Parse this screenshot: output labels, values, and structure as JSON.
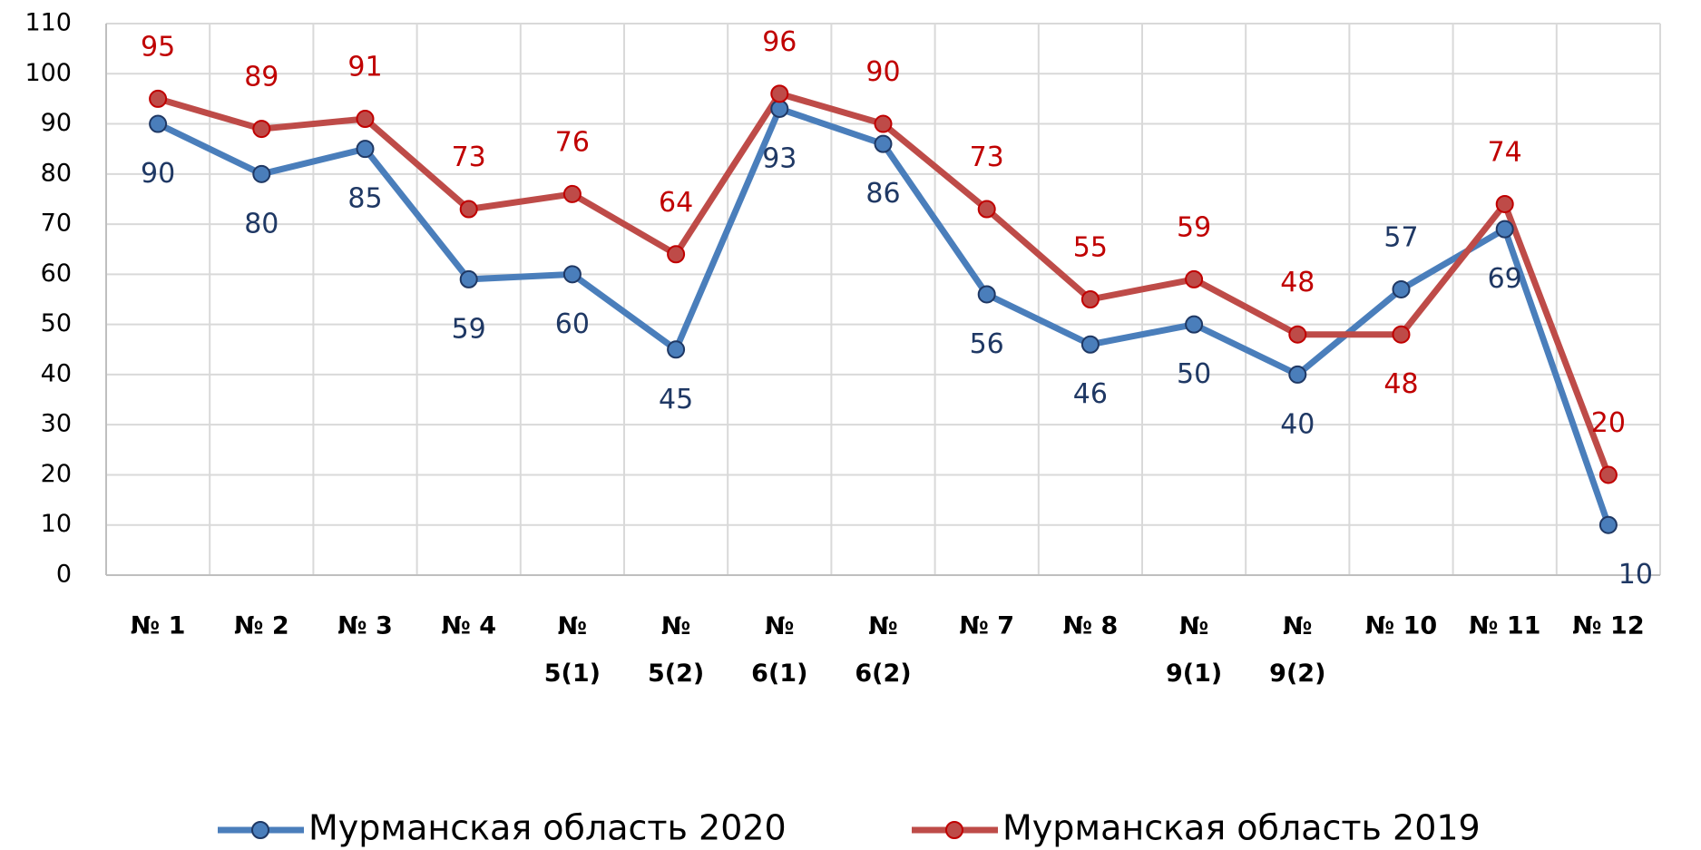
{
  "chart_data": {
    "type": "line",
    "categories": [
      "№ 1",
      "№ 2",
      "№ 3",
      "№ 4",
      "№ 5(1)",
      "№ 5(2)",
      "№ 6(1)",
      "№ 6(2)",
      "№ 7",
      "№ 8",
      "№ 9(1)",
      "№ 9(2)",
      "№ 10",
      "№ 11",
      "№ 12"
    ],
    "series": [
      {
        "name": "Мурманская область 2020",
        "color": "#4a7ebb",
        "label_color": "#1f3864",
        "values": [
          90,
          80,
          85,
          59,
          60,
          45,
          93,
          86,
          56,
          46,
          50,
          40,
          57,
          69,
          10
        ]
      },
      {
        "name": "Мурманская область 2019",
        "color": "#be4b48",
        "label_color": "#c00000",
        "values": [
          95,
          89,
          91,
          73,
          76,
          64,
          96,
          90,
          73,
          55,
          59,
          48,
          48,
          74,
          20
        ]
      }
    ],
    "ylim": [
      0,
      110
    ],
    "yticks": [
      0,
      10,
      20,
      30,
      40,
      50,
      60,
      70,
      80,
      90,
      100,
      110
    ],
    "grid": true,
    "legend": "bottom"
  }
}
